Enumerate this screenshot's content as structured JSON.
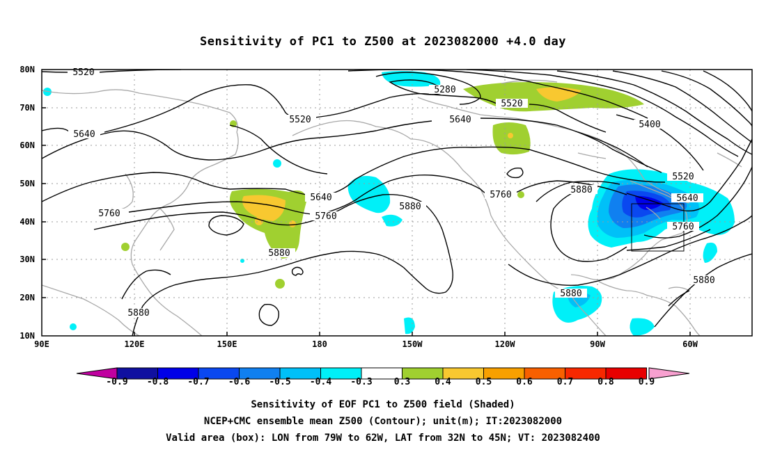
{
  "title": "Sensitivity of PC1 to Z500 at 2023082000 +4.0 day",
  "lat_labels": [
    "80N",
    "70N",
    "60N",
    "50N",
    "40N",
    "30N",
    "20N",
    "10N"
  ],
  "lon_labels": [
    "90E",
    "120E",
    "150E",
    "180",
    "150W",
    "120W",
    "90W",
    "60W"
  ],
  "contour_labels": [
    "5520",
    "5280",
    "5520",
    "5520",
    "5640",
    "5640",
    "5400",
    "5520",
    "5640",
    "5760",
    "5880",
    "5640",
    "5760",
    "5880",
    "5760",
    "5880",
    "5880",
    "5880",
    "5880",
    "5760",
    "5640"
  ],
  "colorbar": {
    "labels": [
      "-0.9",
      "-0.8",
      "-0.7",
      "-0.6",
      "-0.5",
      "-0.4",
      "-0.3",
      "0.3",
      "0.4",
      "0.5",
      "0.6",
      "0.7",
      "0.8",
      "0.9"
    ],
    "colors": [
      "#1010a0",
      "#0000e8",
      "#0a48f0",
      "#1080f0",
      "#00c0f8",
      "#00f0f8",
      "#ffffff",
      "#a0d030",
      "#f8c830",
      "#f8a000",
      "#f86000",
      "#f82800",
      "#e80000"
    ],
    "left_triangle_color": "#c000a0",
    "right_triangle_color": "#f8a0d0"
  },
  "valid_box": {
    "lon_min": -79,
    "lon_max": -62,
    "lat_min": 32,
    "lat_max": 45
  },
  "captions": [
    "Sensitivity of EOF PC1 to Z500 field (Shaded)",
    "NCEP+CMC ensemble mean Z500 (Contour); unit(m); IT:2023082000",
    "Valid area (box): LON from 79W to 62W, LAT from 32N to 45N; VT: 2023082400"
  ]
}
